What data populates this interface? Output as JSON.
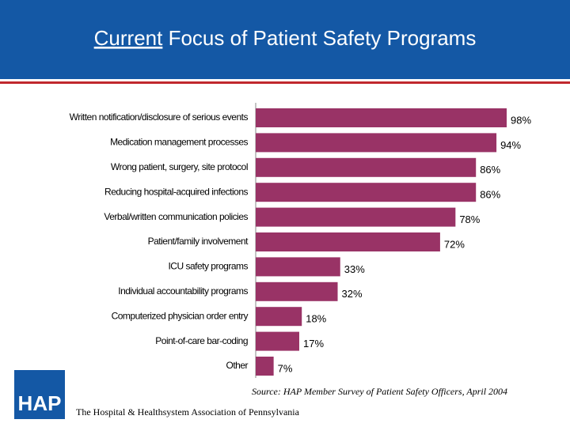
{
  "chart_data": {
    "type": "barh",
    "title": "Current Focus of Patient Safety Programs",
    "title_underline_words": 1,
    "categories": [
      "Written notification/disclosure of serious events",
      "Medication management processes",
      "Wrong patient, surgery, site protocol",
      "Reducing hospital-acquired infections",
      "Verbal/written communication policies",
      "Patient/family involvement",
      "ICU safety programs",
      "Individual accountability programs",
      "Computerized physician order entry",
      "Point-of-care bar-coding",
      "Other"
    ],
    "values": [
      98,
      94,
      86,
      86,
      78,
      72,
      33,
      32,
      18,
      17,
      7
    ],
    "value_labels": [
      "98%",
      "94%",
      "86%",
      "86%",
      "78%",
      "72%",
      "33%",
      "32%",
      "18%",
      "17%",
      "7%"
    ],
    "color": "#993366",
    "xlim": [
      0,
      100
    ]
  },
  "footer": {
    "logo": "HAP",
    "source": "Source: HAP Member Survey of Patient Safety Officers, April 2004",
    "organization": "The Hospital & Healthsystem Association of Pennsylvania"
  }
}
